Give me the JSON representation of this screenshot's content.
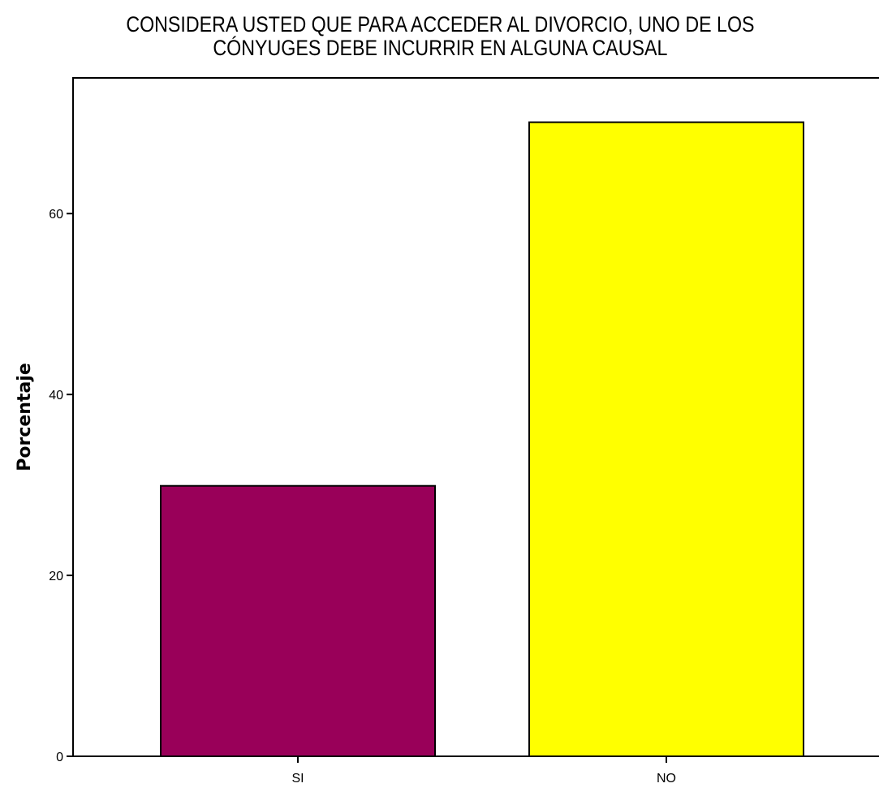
{
  "chart_data": {
    "type": "bar",
    "title": [
      "CONSIDERA USTED QUE PARA ACCEDER AL DIVORCIO, UNO DE LOS",
      "CÓNYUGES DEBE INCURRIR EN ALGUNA CAUSAL"
    ],
    "xlabel": "",
    "ylabel": "Porcentaje",
    "categories": [
      "SI",
      "NO"
    ],
    "values": [
      29.9,
      70.1
    ],
    "colors": [
      "#990059",
      "#ffff00"
    ],
    "ylim": [
      0,
      75
    ],
    "yticks": [
      0,
      20,
      40,
      60
    ],
    "grid": false
  }
}
